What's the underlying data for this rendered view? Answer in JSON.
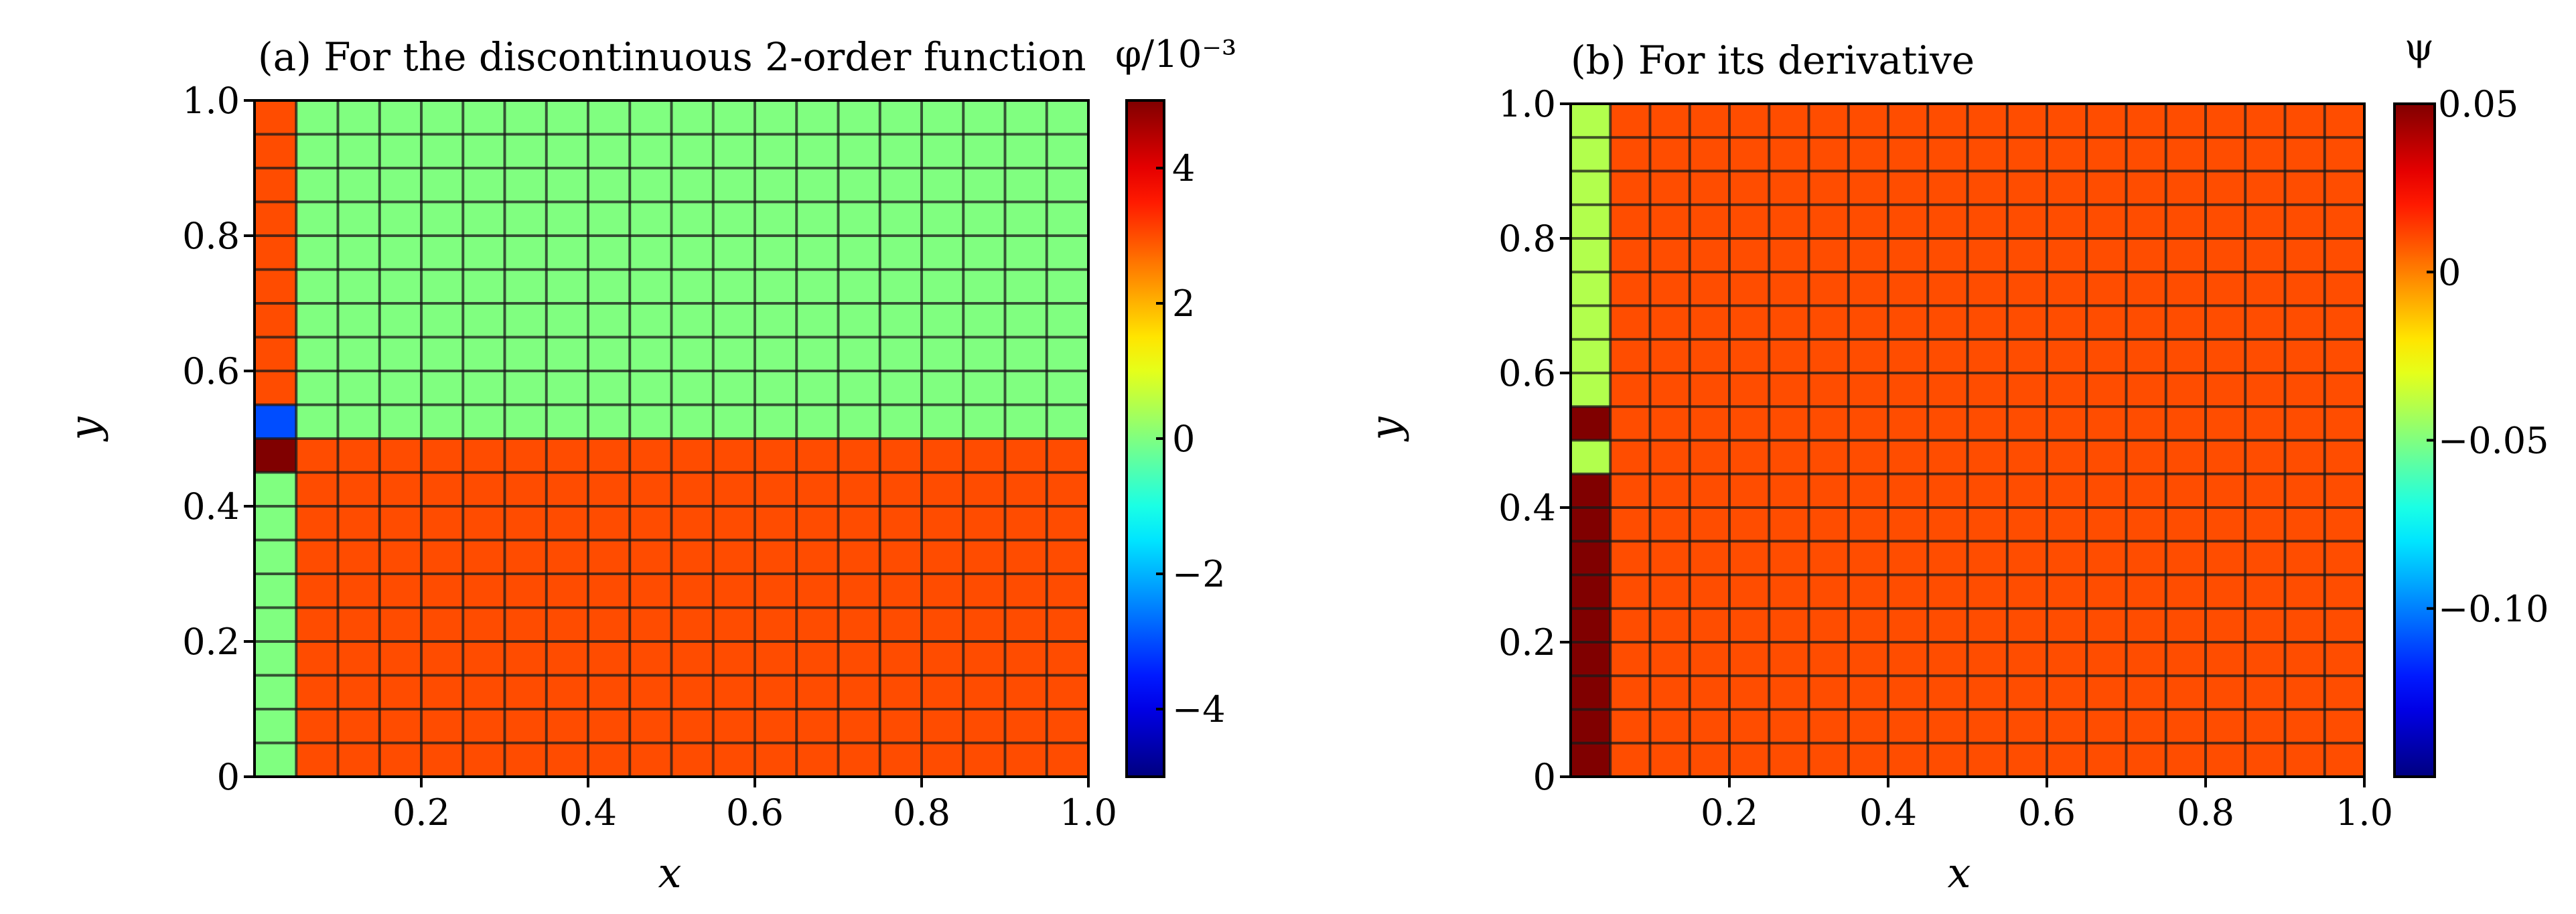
{
  "chart_data": [
    {
      "type": "heatmap",
      "title": "(a) For the discontinuous 2-order function",
      "xlabel": "x",
      "ylabel": "y",
      "xlim": [
        0,
        1
      ],
      "ylim": [
        0,
        1
      ],
      "xticks": [
        "0.2",
        "0.4",
        "0.6",
        "0.8",
        "1.0"
      ],
      "yticks": [
        "0",
        "0.2",
        "0.4",
        "0.6",
        "0.8",
        "1.0"
      ],
      "grid": true,
      "colorbar": {
        "label": "φ/10⁻³",
        "range": [
          -5,
          5
        ],
        "ticks": [
          "−4",
          "−2",
          "0",
          "2",
          "4"
        ],
        "colormap": "jet"
      },
      "regions": [
        {
          "x": [
            0.05,
            1.0
          ],
          "y": [
            0.5,
            1.0
          ],
          "value": 0
        },
        {
          "x": [
            0.05,
            1.0
          ],
          "y": [
            0.0,
            0.5
          ],
          "value": 3
        },
        {
          "x": [
            0.0,
            0.05
          ],
          "y": [
            0.55,
            1.0
          ],
          "value": 3
        },
        {
          "x": [
            0.0,
            0.05
          ],
          "y": [
            0.5,
            0.55
          ],
          "value": -3
        },
        {
          "x": [
            0.0,
            0.05
          ],
          "y": [
            0.45,
            0.5
          ],
          "value": 5
        },
        {
          "x": [
            0.0,
            0.05
          ],
          "y": [
            0.0,
            0.45
          ],
          "value": 0
        }
      ]
    },
    {
      "type": "heatmap",
      "title": "(b) For its derivative",
      "xlabel": "x",
      "ylabel": "y",
      "xlim": [
        0,
        1
      ],
      "ylim": [
        0,
        1
      ],
      "xticks": [
        "0.2",
        "0.4",
        "0.6",
        "0.8",
        "1.0"
      ],
      "yticks": [
        "0",
        "0.2",
        "0.4",
        "0.6",
        "0.8",
        "1.0"
      ],
      "grid": true,
      "colorbar": {
        "label": "ψ",
        "range": [
          -0.15,
          0.05
        ],
        "ticks": [
          "0.05",
          "0",
          "−0.05",
          "−0.10"
        ],
        "colormap": "jet"
      },
      "regions": [
        {
          "x": [
            0.05,
            1.0
          ],
          "y": [
            0.0,
            1.0
          ],
          "value": 0.01
        },
        {
          "x": [
            0.0,
            0.05
          ],
          "y": [
            0.55,
            1.0
          ],
          "value": -0.04
        },
        {
          "x": [
            0.0,
            0.05
          ],
          "y": [
            0.5,
            0.55
          ],
          "value": 0.05
        },
        {
          "x": [
            0.0,
            0.05
          ],
          "y": [
            0.45,
            0.5
          ],
          "value": -0.04
        },
        {
          "x": [
            0.0,
            0.05
          ],
          "y": [
            0.0,
            0.45
          ],
          "value": 0.05
        }
      ]
    }
  ]
}
